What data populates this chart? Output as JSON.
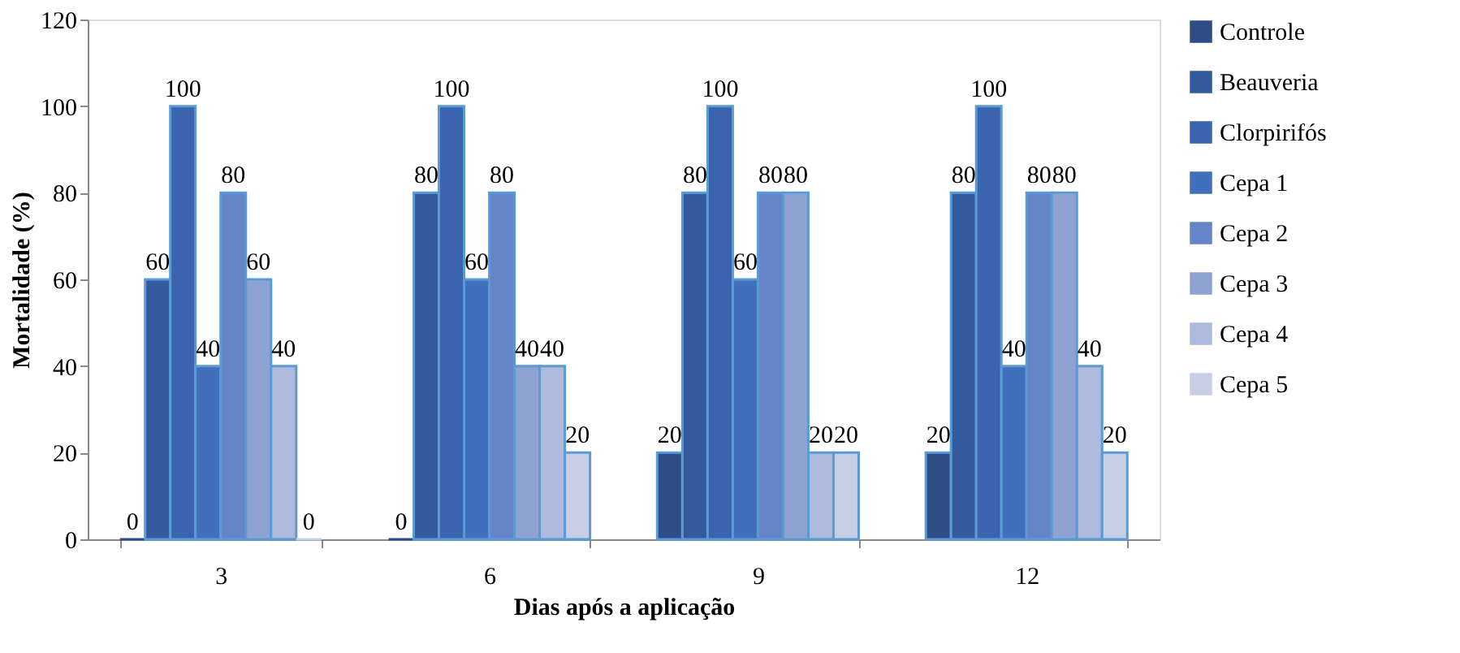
{
  "chart_data": {
    "type": "bar",
    "xlabel": "Dias após a aplicação",
    "ylabel": "Mortalidade (%)",
    "categories": [
      "3",
      "6",
      "9",
      "12"
    ],
    "series": [
      {
        "name": "Controle",
        "color": "#2e4d87",
        "values": [
          0,
          0,
          20,
          20
        ]
      },
      {
        "name": "Beauveria",
        "color": "#345a9e",
        "values": [
          60,
          80,
          80,
          80
        ]
      },
      {
        "name": "Clorpirifós",
        "color": "#3b64ae",
        "values": [
          100,
          100,
          100,
          100
        ]
      },
      {
        "name": "Cepa 1",
        "color": "#416fbc",
        "values": [
          40,
          60,
          60,
          40
        ]
      },
      {
        "name": "Cepa 2",
        "color": "#6585c8",
        "values": [
          80,
          80,
          80,
          80
        ]
      },
      {
        "name": "Cepa 3",
        "color": "#8ea3d2",
        "values": [
          60,
          40,
          80,
          80
        ]
      },
      {
        "name": "Cepa 4",
        "color": "#adb9dd",
        "values": [
          40,
          40,
          20,
          40
        ]
      },
      {
        "name": "Cepa 5",
        "color": "#c6cfe6",
        "values": [
          0,
          20,
          20,
          20
        ]
      }
    ],
    "ylim": [
      0,
      120
    ],
    "yticks": [
      0,
      20,
      40,
      60,
      80,
      100,
      120
    ],
    "grid": false,
    "legend": "right",
    "data_labels": true
  }
}
